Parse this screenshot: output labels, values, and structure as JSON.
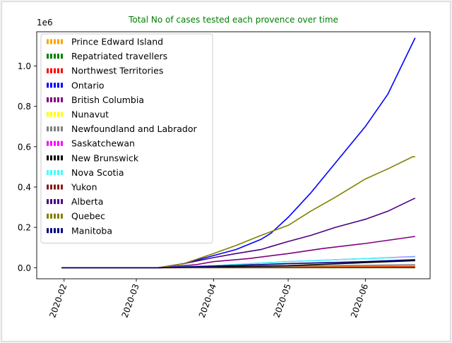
{
  "chart_data": {
    "type": "line",
    "title": "Total No of cases tested each provence over time",
    "title_color": "#008000",
    "xlabel": "",
    "ylabel": "",
    "y_offset_label": "1e6",
    "y_ticks": [
      0.0,
      0.2,
      0.4,
      0.6,
      0.8,
      1.0
    ],
    "y_tick_labels": [
      "0.0",
      "0.2",
      "0.4",
      "0.6",
      "0.8",
      "1.0"
    ],
    "ylim": [
      -0.055,
      1.17
    ],
    "xlim": [
      "2020-01-21",
      "2020-06-27"
    ],
    "x_ticks": [
      "2020-02-01",
      "2020-03-01",
      "2020-04-01",
      "2020-05-01",
      "2020-06-01"
    ],
    "x_tick_labels": [
      "2020-02",
      "2020-03",
      "2020-04",
      "2020-05",
      "2020-06"
    ],
    "grid": false,
    "legend_position": "top-left",
    "series": [
      {
        "name": "Prince Edward Island",
        "color": "#FFA500",
        "x": [
          "2020-01-31",
          "2020-03-10",
          "2020-04-01",
          "2020-05-01",
          "2020-06-01",
          "2020-06-21"
        ],
        "y": [
          0,
          0,
          0.002,
          0.005,
          0.008,
          0.01
        ]
      },
      {
        "name": "Repatriated travellers",
        "color": "#008000",
        "x": [
          "2020-01-31",
          "2020-03-10",
          "2020-04-01",
          "2020-06-21"
        ],
        "y": [
          0,
          0,
          0,
          0
        ]
      },
      {
        "name": "Northwest Territories",
        "color": "#FF0000",
        "x": [
          "2020-01-31",
          "2020-03-10",
          "2020-04-01",
          "2020-05-01",
          "2020-06-01",
          "2020-06-21"
        ],
        "y": [
          0,
          0,
          0.001,
          0.002,
          0.003,
          0.004
        ]
      },
      {
        "name": "Ontario",
        "color": "#0000FF",
        "x": [
          "2020-01-31",
          "2020-03-10",
          "2020-03-20",
          "2020-04-01",
          "2020-04-10",
          "2020-04-20",
          "2020-04-24",
          "2020-05-01",
          "2020-05-10",
          "2020-05-20",
          "2020-06-01",
          "2020-06-10",
          "2020-06-21"
        ],
        "y": [
          0,
          0,
          0.02,
          0.06,
          0.09,
          0.14,
          0.17,
          0.25,
          0.37,
          0.52,
          0.7,
          0.86,
          1.14
        ]
      },
      {
        "name": "British Columbia",
        "color": "#800080",
        "x": [
          "2020-01-31",
          "2020-03-10",
          "2020-03-25",
          "2020-04-01",
          "2020-04-15",
          "2020-05-01",
          "2020-05-15",
          "2020-06-01",
          "2020-06-21"
        ],
        "y": [
          0,
          0,
          0.015,
          0.03,
          0.045,
          0.07,
          0.095,
          0.12,
          0.155
        ]
      },
      {
        "name": "Nunavut",
        "color": "#FFFF00",
        "x": [
          "2020-01-31",
          "2020-03-10",
          "2020-05-01",
          "2020-06-21"
        ],
        "y": [
          0,
          0,
          0.001,
          0.002
        ]
      },
      {
        "name": "Newfoundland and Labrador",
        "color": "#808080",
        "x": [
          "2020-01-31",
          "2020-03-10",
          "2020-04-01",
          "2020-05-01",
          "2020-06-01",
          "2020-06-21"
        ],
        "y": [
          0,
          0,
          0.003,
          0.008,
          0.012,
          0.015
        ]
      },
      {
        "name": "Saskatchewan",
        "color": "#FF00FF",
        "x": [
          "2020-01-31",
          "2020-03-10",
          "2020-04-01",
          "2020-05-01",
          "2020-06-01",
          "2020-06-21"
        ],
        "y": [
          0,
          0,
          0.01,
          0.03,
          0.045,
          0.055
        ]
      },
      {
        "name": "New Brunswick",
        "color": "#000000",
        "x": [
          "2020-01-31",
          "2020-03-10",
          "2020-04-01",
          "2020-05-01",
          "2020-06-01",
          "2020-06-21"
        ],
        "y": [
          0,
          0,
          0.004,
          0.01,
          0.025,
          0.035
        ]
      },
      {
        "name": "Nova Scotia",
        "color": "#40FFFF",
        "x": [
          "2020-01-31",
          "2020-03-10",
          "2020-04-01",
          "2020-05-01",
          "2020-06-01",
          "2020-06-21"
        ],
        "y": [
          0,
          0,
          0.01,
          0.03,
          0.045,
          0.053
        ]
      },
      {
        "name": "Yukon",
        "color": "#8B1A1A",
        "x": [
          "2020-01-31",
          "2020-03-10",
          "2020-05-01",
          "2020-06-21"
        ],
        "y": [
          0,
          0,
          0.001,
          0.002
        ]
      },
      {
        "name": "Alberta",
        "color": "#4B0082",
        "x": [
          "2020-01-31",
          "2020-03-10",
          "2020-03-20",
          "2020-04-01",
          "2020-04-10",
          "2020-04-20",
          "2020-05-01",
          "2020-05-10",
          "2020-05-20",
          "2020-06-01",
          "2020-06-10",
          "2020-06-21"
        ],
        "y": [
          0,
          0,
          0.02,
          0.05,
          0.07,
          0.09,
          0.13,
          0.16,
          0.2,
          0.24,
          0.28,
          0.345
        ]
      },
      {
        "name": "Quebec",
        "color": "#808000",
        "x": [
          "2020-01-31",
          "2020-03-10",
          "2020-03-20",
          "2020-04-01",
          "2020-04-10",
          "2020-04-20",
          "2020-05-01",
          "2020-05-10",
          "2020-05-20",
          "2020-06-01",
          "2020-06-10",
          "2020-06-20",
          "2020-06-21"
        ],
        "y": [
          0,
          0,
          0.02,
          0.07,
          0.11,
          0.16,
          0.21,
          0.28,
          0.35,
          0.44,
          0.49,
          0.55,
          0.55
        ]
      },
      {
        "name": "Manitoba",
        "color": "#000080",
        "x": [
          "2020-01-31",
          "2020-03-10",
          "2020-04-01",
          "2020-05-01",
          "2020-06-01",
          "2020-06-21"
        ],
        "y": [
          0,
          0,
          0.008,
          0.02,
          0.03,
          0.04
        ]
      }
    ]
  }
}
